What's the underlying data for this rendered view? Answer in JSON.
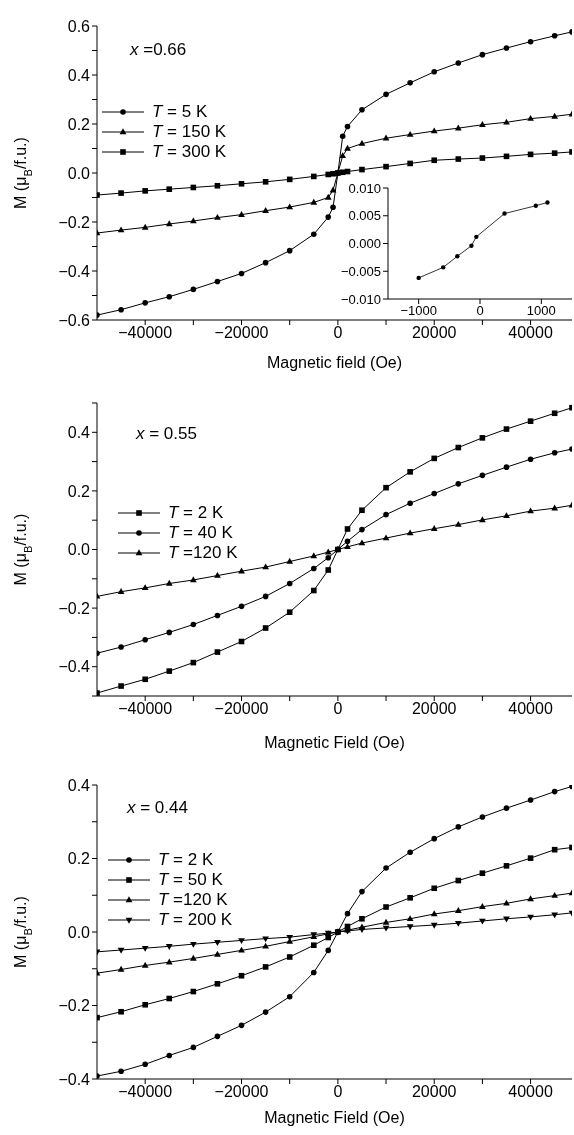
{
  "chart_data": [
    {
      "type": "line",
      "xlabel": "Magnetic field  (Oe)",
      "ylabel": "M (μ$_{B}$/f.u.)",
      "annotations": [
        "x =0.66"
      ],
      "legend": "top left",
      "line_style": "solid",
      "xlim": [
        -50000,
        48600
      ],
      "ylim": [
        -0.6,
        0.6
      ],
      "xticks": [
        {
          "value": -40000,
          "label": "−40000"
        },
        {
          "value": -30000,
          "label": null
        },
        {
          "value": -20000,
          "label": "−20000"
        },
        {
          "value": -10000,
          "label": null
        },
        0,
        {
          "value": 10000,
          "label": null
        },
        20000,
        {
          "value": 30000,
          "label": null
        },
        40000
      ],
      "yticks": [
        {
          "value": -0.6,
          "label": "−0.6"
        },
        {
          "value": -0.5,
          "label": null
        },
        {
          "value": -0.4,
          "label": "−0.4"
        },
        {
          "value": -0.3,
          "label": null
        },
        {
          "value": -0.2,
          "label": "−0.2"
        },
        {
          "value": -0.1,
          "label": null
        },
        {
          "value": 0,
          "label": "0.0"
        },
        {
          "value": 0.1,
          "label": null
        },
        {
          "value": 0.2,
          "label": "0.2"
        },
        {
          "value": 0.3,
          "label": null
        },
        {
          "value": 0.4,
          "label": "0.4"
        },
        {
          "value": 0.5,
          "label": null
        },
        {
          "value": 0.6,
          "label": "0.6"
        }
      ],
      "x": [
        -50000,
        -45000,
        -40000,
        -35000,
        -30000,
        -25000,
        -20000,
        -15000,
        -10000,
        -5000,
        -2000,
        -1000,
        0,
        1000,
        2000,
        5000,
        10000,
        15000,
        20000,
        25000,
        30000,
        35000,
        40000,
        45000,
        48600
      ],
      "series": [
        {
          "name": "T = 5 K",
          "color": "#000000",
          "values": [
            -0.58,
            -0.558,
            -0.53,
            -0.505,
            -0.475,
            -0.443,
            -0.41,
            -0.366,
            -0.317,
            -0.25,
            -0.18,
            -0.14,
            0,
            0.15,
            0.19,
            0.258,
            0.321,
            0.368,
            0.413,
            0.449,
            0.483,
            0.51,
            0.536,
            0.56,
            0.576
          ]
        },
        {
          "name": "T = 150 K",
          "color": "#000000",
          "marker": "triangle",
          "values": [
            -0.245,
            -0.233,
            -0.222,
            -0.208,
            -0.196,
            -0.182,
            -0.17,
            -0.154,
            -0.139,
            -0.12,
            -0.1,
            -0.07,
            0,
            0.07,
            0.1,
            0.12,
            0.142,
            0.157,
            0.171,
            0.183,
            0.197,
            0.207,
            0.222,
            0.231,
            0.24
          ]
        },
        {
          "name": "T = 300 K",
          "color": "#000000",
          "marker": "square",
          "values": [
            -0.09,
            -0.082,
            -0.073,
            -0.066,
            -0.059,
            -0.052,
            -0.044,
            -0.036,
            -0.026,
            -0.014,
            -0.006,
            -0.003,
            0,
            0.003,
            0.006,
            0.014,
            0.026,
            0.039,
            0.052,
            0.057,
            0.061,
            0.068,
            0.076,
            0.081,
            0.086
          ]
        }
      ]
    },
    {
      "type": "line",
      "line_style": "solid",
      "xlim": [
        -1500,
        1500
      ],
      "ylim": [
        -0.01,
        0.01
      ],
      "xticks": [
        {
          "value": -1000,
          "label": "−1000"
        },
        0,
        1000
      ],
      "yticks": [
        {
          "value": -0.01,
          "label": "−0.010"
        },
        {
          "value": -0.005,
          "label": "−0.005"
        },
        {
          "value": 0,
          "label": "0.000"
        },
        {
          "value": 0.005,
          "label": "0.005"
        },
        {
          "value": 0.01,
          "label": "0.010"
        }
      ],
      "x": [
        -1000,
        -600,
        -370,
        -140,
        -60,
        400,
        910,
        1100
      ],
      "series": [
        {
          "color": "#000000",
          "values": [
            -0.0062,
            -0.0043,
            -0.0023,
            -0.0004,
            0.0012,
            0.0054,
            0.0068,
            0.0074
          ]
        }
      ]
    },
    {
      "type": "line",
      "xlabel": "Magnetic Field (Oe)",
      "ylabel": "M (μ$_{B}$/f.u.)",
      "annotations": [
        "x = 0.55"
      ],
      "legend": "left",
      "line_style": "solid",
      "xlim": [
        -50000,
        48600
      ],
      "ylim": [
        -0.5,
        0.5
      ],
      "xticks": [
        {
          "value": -40000,
          "label": "−40000"
        },
        {
          "value": -30000,
          "label": null
        },
        {
          "value": -20000,
          "label": "−20000"
        },
        {
          "value": -10000,
          "label": null
        },
        0,
        {
          "value": 10000,
          "label": null
        },
        20000,
        {
          "value": 30000,
          "label": null
        },
        40000
      ],
      "yticks": [
        {
          "value": -0.5,
          "label": null
        },
        {
          "value": -0.4,
          "label": "−0.4"
        },
        {
          "value": -0.3,
          "label": null
        },
        {
          "value": -0.2,
          "label": "−0.2"
        },
        {
          "value": -0.1,
          "label": null
        },
        {
          "value": 0,
          "label": "0.0"
        },
        {
          "value": 0.1,
          "label": null
        },
        {
          "value": 0.2,
          "label": "0.2"
        },
        {
          "value": 0.3,
          "label": null
        },
        {
          "value": 0.4,
          "label": "0.4"
        },
        {
          "value": 0.5,
          "label": null
        }
      ],
      "x": [
        -50000,
        -45000,
        -40000,
        -35000,
        -30000,
        -25000,
        -20000,
        -15000,
        -10000,
        -5000,
        -2000,
        0,
        2000,
        5000,
        10000,
        15000,
        20000,
        25000,
        30000,
        35000,
        40000,
        45000,
        48600
      ],
      "series": [
        {
          "name": "T = 2 K",
          "color": "#000000",
          "marker": "square",
          "values": [
            -0.49,
            -0.466,
            -0.443,
            -0.415,
            -0.386,
            -0.35,
            -0.314,
            -0.268,
            -0.214,
            -0.14,
            -0.07,
            0,
            0.07,
            0.134,
            0.211,
            0.265,
            0.311,
            0.348,
            0.381,
            0.411,
            0.438,
            0.465,
            0.484
          ]
        },
        {
          "name": "T = 40 K",
          "color": "#000000",
          "values": [
            -0.354,
            -0.333,
            -0.308,
            -0.283,
            -0.256,
            -0.225,
            -0.194,
            -0.16,
            -0.116,
            -0.065,
            -0.028,
            0,
            0.028,
            0.068,
            0.119,
            0.158,
            0.191,
            0.224,
            0.253,
            0.281,
            0.308,
            0.33,
            0.343
          ]
        },
        {
          "name": "T =120 K",
          "color": "#000000",
          "marker": "triangle",
          "values": [
            -0.16,
            -0.144,
            -0.131,
            -0.116,
            -0.104,
            -0.089,
            -0.074,
            -0.06,
            -0.041,
            -0.022,
            -0.009,
            0,
            0.009,
            0.022,
            0.039,
            0.056,
            0.071,
            0.085,
            0.101,
            0.115,
            0.131,
            0.141,
            0.151
          ]
        }
      ]
    },
    {
      "type": "line",
      "xlabel": "Magnetic Field (Oe)",
      "ylabel": "M (μ$_{B}$/f.u.)",
      "annotations": [
        "x = 0.44"
      ],
      "legend": "top left",
      "line_style": "solid",
      "xlim": [
        -50000,
        48600
      ],
      "ylim": [
        -0.4,
        0.4
      ],
      "xticks": [
        {
          "value": -40000,
          "label": "−40000"
        },
        {
          "value": -30000,
          "label": null
        },
        {
          "value": -20000,
          "label": "−20000"
        },
        {
          "value": -10000,
          "label": null
        },
        0,
        {
          "value": 10000,
          "label": null
        },
        20000,
        {
          "value": 30000,
          "label": null
        },
        40000
      ],
      "yticks": [
        {
          "value": -0.4,
          "label": "−0.4"
        },
        {
          "value": -0.3,
          "label": null
        },
        {
          "value": -0.2,
          "label": "−0.2"
        },
        {
          "value": -0.1,
          "label": null
        },
        {
          "value": 0,
          "label": "0.0"
        },
        {
          "value": 0.1,
          "label": null
        },
        {
          "value": 0.2,
          "label": "0.2"
        },
        {
          "value": 0.3,
          "label": null
        },
        {
          "value": 0.4,
          "label": "0.4"
        }
      ],
      "x": [
        -50000,
        -45000,
        -40000,
        -35000,
        -30000,
        -25000,
        -20000,
        -15000,
        -10000,
        -5000,
        -2000,
        0,
        2000,
        5000,
        10000,
        15000,
        20000,
        25000,
        30000,
        35000,
        40000,
        45000,
        48600
      ],
      "series": [
        {
          "name": "T = 2 K",
          "color": "#000000",
          "values": [
            -0.392,
            -0.379,
            -0.36,
            -0.336,
            -0.314,
            -0.284,
            -0.254,
            -0.218,
            -0.176,
            -0.11,
            -0.05,
            0,
            0.05,
            0.11,
            0.174,
            0.217,
            0.254,
            0.286,
            0.313,
            0.337,
            0.359,
            0.382,
            0.396
          ]
        },
        {
          "name": "T = 50 K",
          "color": "#000000",
          "marker": "square",
          "values": [
            -0.233,
            -0.217,
            -0.198,
            -0.181,
            -0.162,
            -0.141,
            -0.119,
            -0.095,
            -0.068,
            -0.036,
            -0.015,
            0,
            0.015,
            0.036,
            0.068,
            0.093,
            0.119,
            0.14,
            0.16,
            0.18,
            0.201,
            0.224,
            0.23
          ]
        },
        {
          "name": "T =120 K",
          "color": "#000000",
          "marker": "triangle",
          "values": [
            -0.112,
            -0.102,
            -0.091,
            -0.082,
            -0.072,
            -0.061,
            -0.05,
            -0.039,
            -0.026,
            -0.013,
            -0.005,
            0,
            0.005,
            0.013,
            0.026,
            0.036,
            0.049,
            0.058,
            0.069,
            0.078,
            0.09,
            0.099,
            0.106
          ]
        },
        {
          "name": "T = 200 K",
          "color": "#000000",
          "marker": "triangle-down",
          "values": [
            -0.054,
            -0.049,
            -0.044,
            -0.039,
            -0.033,
            -0.028,
            -0.023,
            -0.018,
            -0.014,
            -0.007,
            -0.003,
            0,
            0.003,
            0.007,
            0.011,
            0.015,
            0.019,
            0.024,
            0.03,
            0.036,
            0.041,
            0.047,
            0.052
          ]
        }
      ]
    }
  ]
}
